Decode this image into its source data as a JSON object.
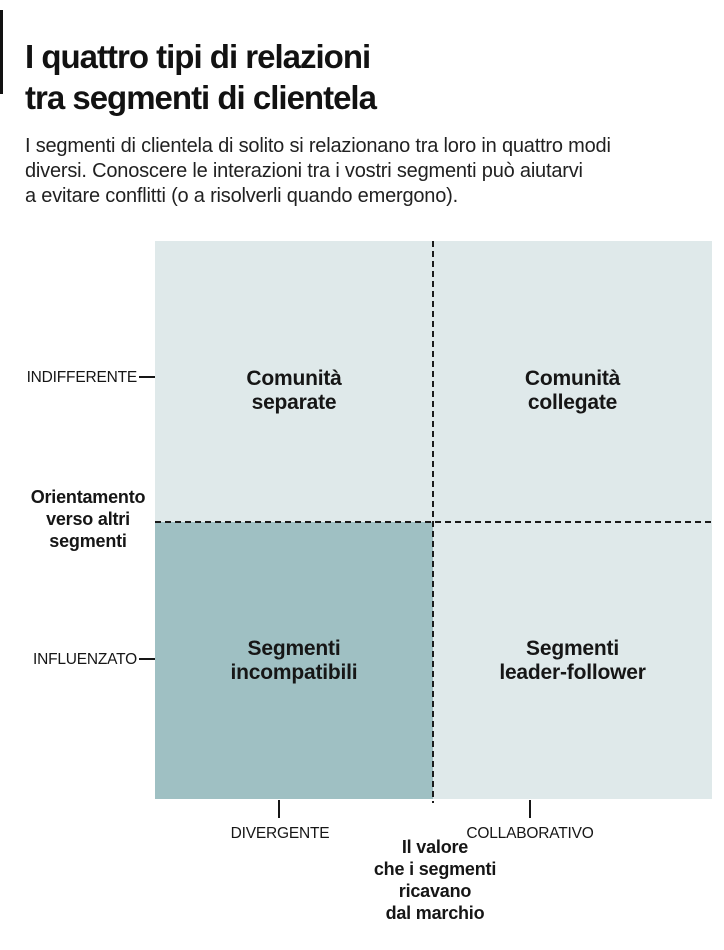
{
  "figure": {
    "title_lines": [
      "I quattro tipi di relazioni",
      "tra segmenti di clientela"
    ],
    "intro_lines": [
      "I segmenti di clientela di solito si relazionano tra loro in quattro modi",
      "diversi. Conoscere le interazioni tra i vostri segmenti può aiutarvi",
      "a evitare conflitti (o a risolverli quando emergono)."
    ]
  },
  "chart_data": {
    "type": "quadrant-matrix",
    "title": "I quattro tipi di relazioni tra segmenti di clientela",
    "x_axis": {
      "title": "Il valore che i segmenti ricavano dal marchio",
      "title_lines": [
        "Il valore",
        "che i segmenti",
        "ricavano",
        "dal marchio"
      ],
      "tick_labels": [
        "DIVERGENTE",
        "COLLABORATIVO"
      ]
    },
    "y_axis": {
      "title": "Orientamento verso altri segmenti",
      "title_lines": [
        "Orientamento",
        "verso altri",
        "segmenti"
      ],
      "tick_labels": [
        "INDIFFERENTE",
        "INFLUENZATO"
      ]
    },
    "quadrants": [
      {
        "position": "top-left",
        "x": "DIVERGENTE",
        "y": "INDIFFERENTE",
        "label": "Comunità separate",
        "label_lines": [
          "Comunità",
          "separate"
        ],
        "highlighted": false
      },
      {
        "position": "top-right",
        "x": "COLLABORATIVO",
        "y": "INDIFFERENTE",
        "label": "Comunità collegate",
        "label_lines": [
          "Comunità",
          "collegate"
        ],
        "highlighted": false
      },
      {
        "position": "bottom-left",
        "x": "DIVERGENTE",
        "y": "INFLUENZATO",
        "label": "Segmenti incompatibili",
        "label_lines": [
          "Segmenti",
          "incompatibili"
        ],
        "highlighted": true
      },
      {
        "position": "bottom-right",
        "x": "COLLABORATIVO",
        "y": "INFLUENZATO",
        "label": "Segmenti leader-follower",
        "label_lines": [
          "Segmenti",
          "leader-follower"
        ],
        "highlighted": false
      }
    ],
    "colors": {
      "quadrant_light": "#dfe9ea",
      "quadrant_highlight": "#9fc0c3",
      "line": "#1a1a1a",
      "text": "#161616"
    }
  }
}
